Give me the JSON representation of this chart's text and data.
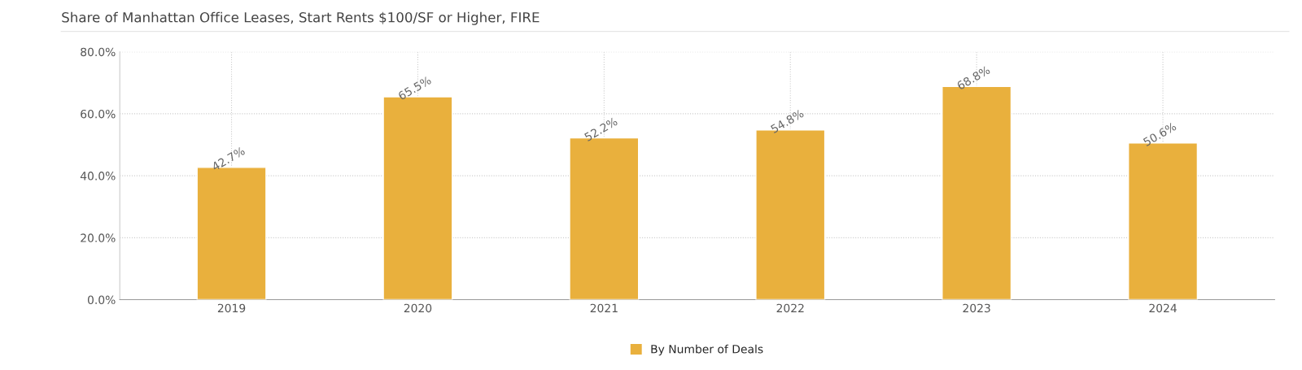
{
  "chart_data": {
    "type": "bar",
    "title": "Share of Manhattan Office Leases, Start Rents $100/SF or Higher, FIRE",
    "categories": [
      "2019",
      "2020",
      "2021",
      "2022",
      "2023",
      "2024"
    ],
    "series": [
      {
        "name": "By Number of Deals",
        "color": "#e9b03d",
        "values": [
          42.7,
          65.5,
          52.2,
          54.8,
          68.8,
          50.6
        ],
        "value_labels": [
          "42.7%",
          "65.5%",
          "52.2%",
          "54.8%",
          "68.8%",
          "50.6%"
        ]
      }
    ],
    "ylim": [
      0,
      80
    ],
    "yticks": [
      {
        "value": 0,
        "label": "0.0%"
      },
      {
        "value": 20,
        "label": "20.0%"
      },
      {
        "value": 40,
        "label": "40.0%"
      },
      {
        "value": 60,
        "label": "60.0%"
      },
      {
        "value": 80,
        "label": "80.0%"
      }
    ],
    "grid": true,
    "legend": "bottom"
  }
}
